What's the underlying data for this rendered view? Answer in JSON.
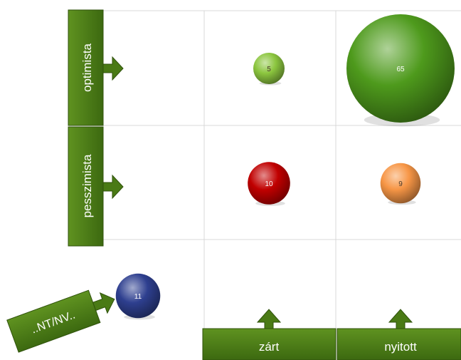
{
  "chart_data": {
    "type": "bubble-matrix",
    "title": "",
    "rows": [
      "optimista",
      "pesszimista"
    ],
    "columns": [
      "zárt",
      "nyitott"
    ],
    "outside_label": "..NT/NV..",
    "bubbles": [
      {
        "row": "optimista",
        "column": "zárt",
        "value": 5,
        "color": "#8cc63f"
      },
      {
        "row": "optimista",
        "column": "nyitott",
        "value": 65,
        "color": "#4e9a1c"
      },
      {
        "row": "pesszimista",
        "column": "zárt",
        "value": 10,
        "color": "#c00000"
      },
      {
        "row": "pesszimista",
        "column": "nyitott",
        "value": 9,
        "color": "#f79646"
      },
      {
        "row": "..NT/NV..",
        "column": "",
        "value": 11,
        "color": "#2e3f8f"
      }
    ],
    "grid": true,
    "legend": "none"
  },
  "colors": {
    "label_box": "#4f7f17",
    "label_box_dark": "#335a0c",
    "label_text": "#ffffff",
    "grid_line": "#d9d9d9"
  }
}
